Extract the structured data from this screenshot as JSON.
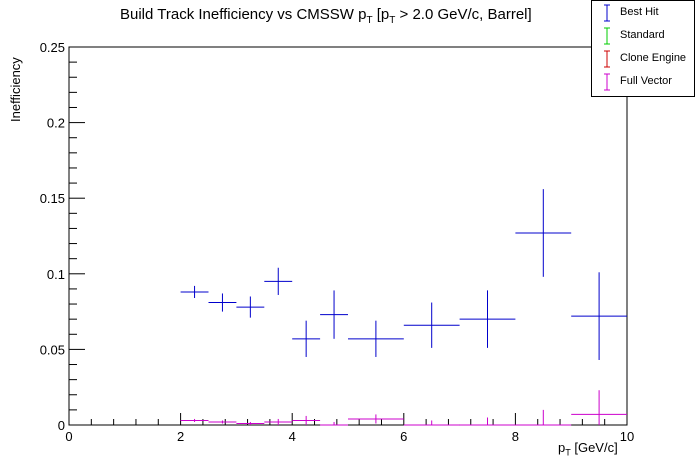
{
  "title": {
    "prefix": "Build Track Inefficiency vs CMSSW p",
    "sub1": "T",
    "middle": " [p",
    "sub2": "T",
    "suffix": " > 2.0 GeV/c, Barrel]"
  },
  "ylabel": "Inefficiency",
  "xlabel": {
    "prefix": "p",
    "sub": "T",
    "suffix": " [GeV/c]"
  },
  "legend": [
    {
      "name": "Best Hit",
      "color": "#0000cc"
    },
    {
      "name": "Standard",
      "color": "#00cc00"
    },
    {
      "name": "Clone Engine",
      "color": "#cc0000"
    },
    {
      "name": "Full Vector",
      "color": "#cc00cc"
    }
  ],
  "chart_data": {
    "type": "scatter",
    "xlim": [
      0,
      10
    ],
    "ylim": [
      0,
      0.25
    ],
    "xticks": [
      "0",
      "2",
      "4",
      "6",
      "8",
      "10"
    ],
    "yticks": [
      "0",
      "0.05",
      "0.1",
      "0.15",
      "0.2",
      "0.25"
    ],
    "grid": false,
    "legend_position": "top-right",
    "series": [
      {
        "name": "Best Hit",
        "color": "#0000cc",
        "points": [
          {
            "x": 2.25,
            "xerr": 0.25,
            "y": 0.088,
            "yerr": 0.004
          },
          {
            "x": 2.75,
            "xerr": 0.25,
            "y": 0.081,
            "yerr": 0.006
          },
          {
            "x": 3.25,
            "xerr": 0.25,
            "y": 0.078,
            "yerr": 0.007
          },
          {
            "x": 3.75,
            "xerr": 0.25,
            "y": 0.095,
            "yerr": 0.009
          },
          {
            "x": 4.25,
            "xerr": 0.25,
            "y": 0.057,
            "yerr": 0.012
          },
          {
            "x": 4.75,
            "xerr": 0.25,
            "y": 0.073,
            "yerr": 0.016
          },
          {
            "x": 5.5,
            "xerr": 0.5,
            "y": 0.057,
            "yerr": 0.012
          },
          {
            "x": 6.5,
            "xerr": 0.5,
            "y": 0.066,
            "yerr": 0.015
          },
          {
            "x": 7.5,
            "xerr": 0.5,
            "y": 0.07,
            "yerr": 0.019
          },
          {
            "x": 8.5,
            "xerr": 0.5,
            "y": 0.127,
            "yerr": 0.029
          },
          {
            "x": 9.5,
            "xerr": 0.5,
            "y": 0.072,
            "yerr": 0.029
          }
        ]
      },
      {
        "name": "Standard",
        "color": "#00cc00",
        "points": []
      },
      {
        "name": "Clone Engine",
        "color": "#cc0000",
        "points": []
      },
      {
        "name": "Full Vector",
        "color": "#cc00cc",
        "points": [
          {
            "x": 2.25,
            "xerr": 0.25,
            "y": 0.003,
            "yerr": 0.001
          },
          {
            "x": 2.75,
            "xerr": 0.25,
            "y": 0.002,
            "yerr": 0.001
          },
          {
            "x": 3.25,
            "xerr": 0.25,
            "y": 0.001,
            "yerr": 0.001
          },
          {
            "x": 3.75,
            "xerr": 0.25,
            "y": 0.002,
            "yerr": 0.002
          },
          {
            "x": 4.25,
            "xerr": 0.25,
            "y": 0.003,
            "yerr": 0.003
          },
          {
            "x": 4.75,
            "xerr": 0.25,
            "y": 0.0,
            "yerr": 0.002
          },
          {
            "x": 5.5,
            "xerr": 0.5,
            "y": 0.004,
            "yerr": 0.003
          },
          {
            "x": 6.5,
            "xerr": 0.5,
            "y": 0.0,
            "yerr": 0.003
          },
          {
            "x": 7.5,
            "xerr": 0.5,
            "y": 0.0,
            "yerr": 0.005
          },
          {
            "x": 8.5,
            "xerr": 0.5,
            "y": 0.0,
            "yerr": 0.01
          },
          {
            "x": 9.5,
            "xerr": 0.5,
            "y": 0.007,
            "yerr": 0.016
          }
        ]
      }
    ]
  }
}
